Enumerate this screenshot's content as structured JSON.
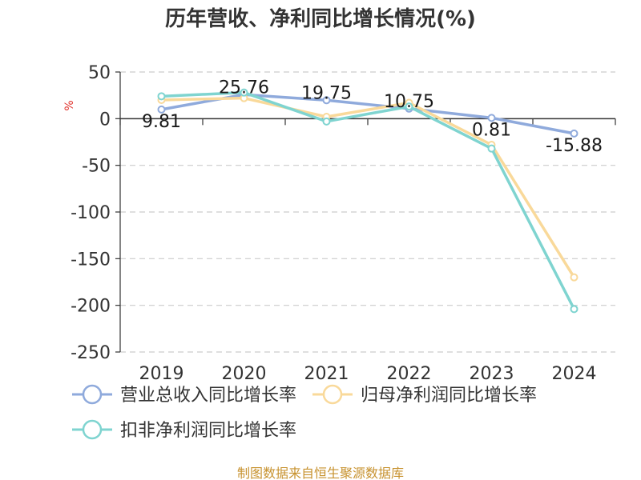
{
  "chart_data": {
    "type": "line",
    "title": "历年营收、净利同比增长情况(%)",
    "ylabel": "%",
    "xlabel": "",
    "categories": [
      "2019",
      "2020",
      "2021",
      "2022",
      "2023",
      "2024"
    ],
    "ylim": [
      -250,
      50
    ],
    "yticks": [
      50,
      0,
      -50,
      -100,
      -150,
      -200,
      -250
    ],
    "grid": true,
    "legend_position": "bottom-left",
    "series": [
      {
        "name": "营业总收入同比增长率",
        "color": "#8faadc",
        "values": [
          9.81,
          25.76,
          19.75,
          10.75,
          0.81,
          -15.88
        ],
        "labels": [
          "9.81",
          "25.76",
          "19.75",
          "10.75",
          "0.81",
          "-15.88"
        ]
      },
      {
        "name": "归母净利润同比增长率",
        "color": "#f9d99a",
        "values": [
          20,
          22,
          2,
          17,
          -28,
          -170
        ]
      },
      {
        "name": "扣非净利润同比增长率",
        "color": "#7fd4d0",
        "values": [
          24,
          28,
          -3,
          13,
          -32,
          -204
        ]
      }
    ],
    "source": "制图数据来自恒生聚源数据库"
  }
}
